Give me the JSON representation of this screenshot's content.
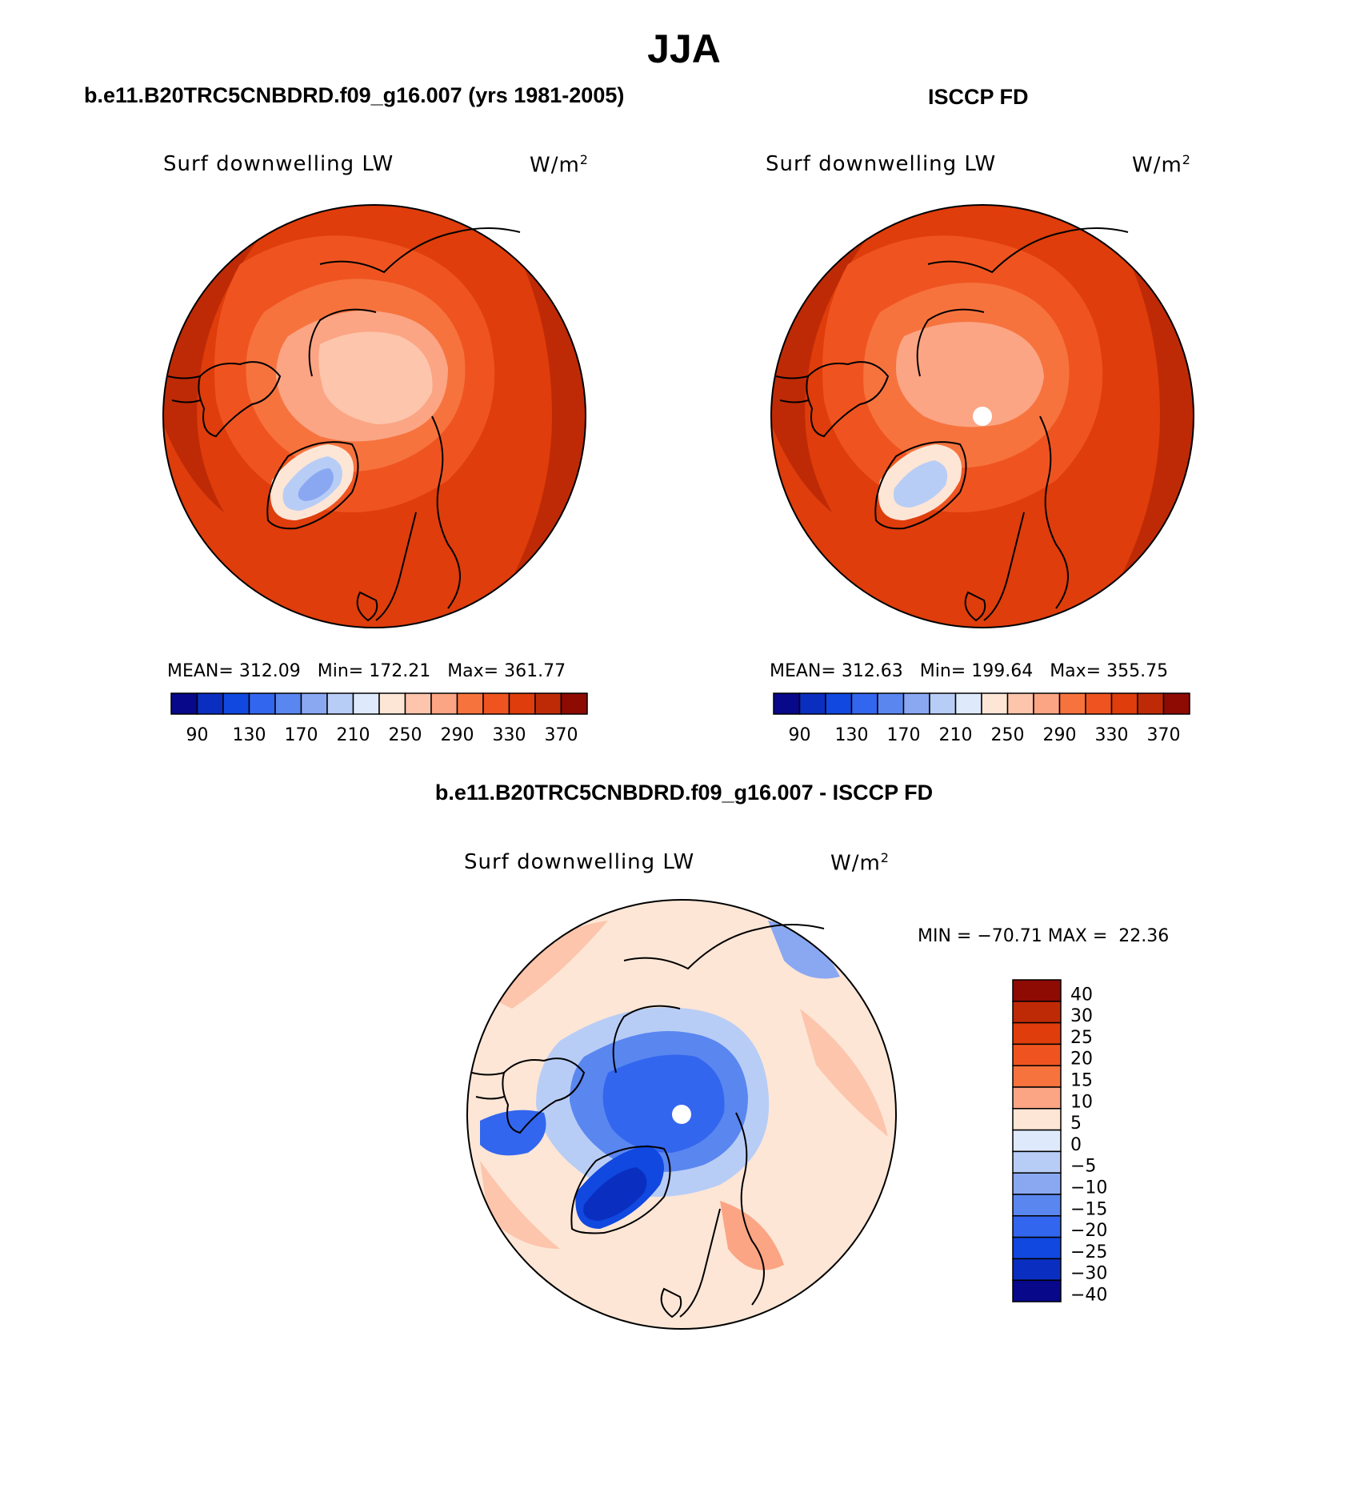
{
  "title": "JJA",
  "panels": [
    {
      "heading": "b.e11.B20TRC5CNBDRD.f09_g16.007 (yrs 1981-2005)",
      "left_label": "Surf downwelling LW",
      "unit_base": "W/m",
      "unit_exp": "2",
      "stats": "MEAN= 312.09   Min= 172.21   Max= 361.77",
      "map_icon": "arctic-polar-stereographic-map",
      "colorbar_labels": [
        "90",
        "130",
        "170",
        "210",
        "250",
        "290",
        "330",
        "370"
      ]
    },
    {
      "heading": "ISCCP FD",
      "left_label": "Surf downwelling LW",
      "unit_base": "W/m",
      "unit_exp": "2",
      "stats": "MEAN= 312.63   Min= 199.64   Max= 355.75",
      "map_icon": "arctic-polar-stereographic-map",
      "colorbar_labels": [
        "90",
        "130",
        "170",
        "210",
        "250",
        "290",
        "330",
        "370"
      ]
    },
    {
      "heading": "b.e11.B20TRC5CNBDRD.f09_g16.007 - ISCCP FD",
      "left_label": "Surf downwelling LW",
      "unit_base": "W/m",
      "unit_exp": "2",
      "stats": "MIN = −70.71 MAX =  22.36",
      "map_icon": "arctic-difference-map",
      "colorbar_labels": [
        "40",
        "30",
        "25",
        "20",
        "15",
        "10",
        "5",
        "0",
        "−5",
        "−10",
        "−15",
        "−20",
        "−25",
        "−30",
        "−40"
      ]
    }
  ],
  "colors": {
    "abs_scale": [
      "#08088a",
      "#0a2fc0",
      "#1048e0",
      "#3366ee",
      "#5a86f0",
      "#8aa8f2",
      "#b8cdf6",
      "#deeafb",
      "#fde6d6",
      "#fcc5ac",
      "#fba584",
      "#f7733e",
      "#ef5420",
      "#df3d0c",
      "#bf2a06",
      "#8e0b04"
    ],
    "diff_scale": [
      "#8e0b04",
      "#bf2a06",
      "#df3d0c",
      "#ef5420",
      "#f7733e",
      "#fba584",
      "#fde6d6",
      "#deeafb",
      "#b8cdf6",
      "#8aa8f2",
      "#5a86f0",
      "#3366ee",
      "#1048e0",
      "#0a2fc0",
      "#08088a"
    ],
    "coast": "#000000"
  }
}
